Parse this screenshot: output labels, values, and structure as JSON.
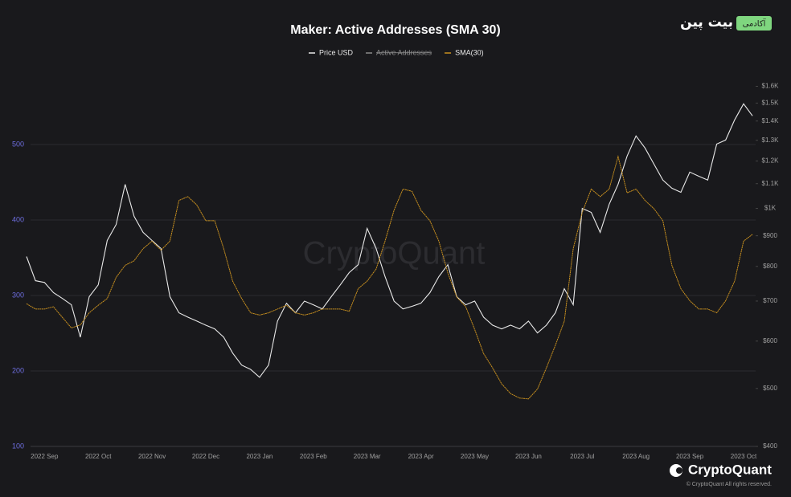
{
  "chart_data": {
    "type": "line",
    "title": "Maker: Active Addresses (SMA 30)",
    "logo": {
      "name": "بیت پین",
      "badge": "آکادمی"
    },
    "watermark": "CryptoQuant",
    "brand": "CryptoQuant",
    "copyright": "© CryptoQuant All rights reserved.",
    "legend": "top",
    "grid": true,
    "categories": [
      null,
      null,
      "2022 Sep",
      null,
      null,
      null,
      null,
      null,
      "2022 Oct",
      null,
      null,
      null,
      null,
      null,
      "2022 Nov",
      null,
      null,
      null,
      null,
      null,
      "2022 Dec",
      null,
      null,
      null,
      null,
      null,
      "2023 Jan",
      null,
      null,
      null,
      null,
      null,
      "2023 Feb",
      null,
      null,
      null,
      null,
      null,
      "2023 Mar",
      null,
      null,
      null,
      null,
      null,
      "2023 Apr",
      null,
      null,
      null,
      null,
      null,
      "2023 May",
      null,
      null,
      null,
      null,
      null,
      "2023 Jun",
      null,
      null,
      null,
      null,
      null,
      "2023 Jul",
      null,
      null,
      null,
      null,
      null,
      "2023 Aug",
      null,
      null,
      null,
      null,
      null,
      "2023 Sep",
      null,
      null,
      null,
      null,
      null,
      "2023 Oct",
      null
    ],
    "ylim": [
      100,
      600
    ],
    "yticks": [
      100,
      200,
      300,
      400,
      500
    ],
    "y2lim": [
      400,
      1710
    ],
    "y2scale": "log",
    "y2ticks": [
      {
        "value": 400,
        "label": "$400"
      },
      {
        "value": 500,
        "label": "$500"
      },
      {
        "value": 600,
        "label": "$600"
      },
      {
        "value": 700,
        "label": "$700"
      },
      {
        "value": 800,
        "label": "$800"
      },
      {
        "value": 900,
        "label": "$900"
      },
      {
        "value": 1000,
        "label": "$1K"
      },
      {
        "value": 1100,
        "label": "$1.1K"
      },
      {
        "value": 1200,
        "label": "$1.2K"
      },
      {
        "value": 1300,
        "label": "$1.3K"
      },
      {
        "value": 1400,
        "label": "$1.4K"
      },
      {
        "value": 1500,
        "label": "$1.5K"
      },
      {
        "value": 1600,
        "label": "$1.6K"
      }
    ],
    "series": [
      {
        "name": "Price USD",
        "color": "#e8e8e8",
        "axis": "y2",
        "values": [
          831,
          757,
          752,
          723,
          707,
          690,
          609,
          712,
          745,
          884,
          940,
          1097,
          970,
          912,
          884,
          857,
          712,
          669,
          658,
          648,
          638,
          629,
          609,
          573,
          547,
          538,
          522,
          547,
          648,
          694,
          669,
          700,
          690,
          679,
          712,
          745,
          781,
          805,
          926,
          857,
          769,
          700,
          679,
          686,
          694,
          723,
          769,
          805,
          712,
          690,
          700,
          658,
          638,
          629,
          638,
          629,
          648,
          619,
          638,
          669,
          734,
          690,
          1000,
          985,
          912,
          1016,
          1097,
          1223,
          1322,
          1262,
          1186,
          1115,
          1081,
          1064,
          1150,
          1132,
          1115,
          1281,
          1301,
          1406,
          1496,
          1428
        ]
      },
      {
        "name": "Active Addresses",
        "color": "#8a8a8a",
        "hidden": true
      },
      {
        "name": "SMA(30)",
        "color": "#c8901f",
        "axis": "y",
        "values": [
          289,
          282,
          282,
          285,
          271,
          257,
          261,
          277,
          287,
          296,
          324,
          340,
          346,
          362,
          372,
          360,
          372,
          426,
          431,
          420,
          399,
          399,
          362,
          319,
          296,
          277,
          274,
          277,
          282,
          287,
          277,
          274,
          277,
          282,
          282,
          282,
          279,
          309,
          319,
          335,
          372,
          413,
          441,
          438,
          413,
          399,
          372,
          330,
          298,
          285,
          255,
          223,
          204,
          183,
          170,
          164,
          163,
          176,
          204,
          234,
          266,
          362,
          410,
          441,
          431,
          441,
          484,
          436,
          441,
          426,
          415,
          399,
          340,
          309,
          293,
          282,
          282,
          277,
          293,
          319,
          372,
          381
        ]
      }
    ]
  }
}
